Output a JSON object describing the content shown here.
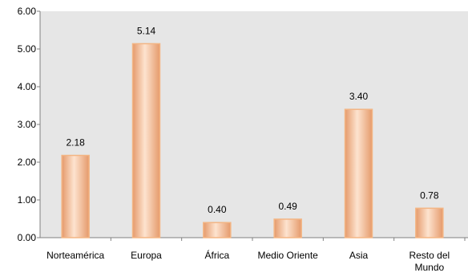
{
  "chart_data": {
    "type": "bar",
    "title": "",
    "xlabel": "",
    "ylabel": "",
    "categories": [
      "Norteamérica",
      "Europa",
      "África",
      "Medio Oriente",
      "Asia",
      "Resto del Mundo"
    ],
    "category_lines": [
      [
        "Norteamérica"
      ],
      [
        "Europa"
      ],
      [
        "África"
      ],
      [
        "Medio Oriente"
      ],
      [
        "Asia"
      ],
      [
        "Resto del",
        "Mundo"
      ]
    ],
    "values": [
      2.18,
      5.14,
      0.4,
      0.49,
      3.4,
      0.78
    ],
    "value_labels": [
      "2.18",
      "5.14",
      "0.40",
      "0.49",
      "3.40",
      "0.78"
    ],
    "ylim": [
      0,
      6
    ],
    "yticks": [
      "0.00",
      "1.00",
      "2.00",
      "3.00",
      "4.00",
      "5.00",
      "6.00"
    ],
    "grid": false,
    "legend": "none",
    "colors": {
      "plot_background": "#e6e6e6",
      "bar_fill_light": "#fde3cf",
      "bar_fill_mid": "#f7bb92",
      "bar_fill_dark": "#e59a6b",
      "bar_outline": "#f3b584",
      "axis": "#808080"
    }
  }
}
